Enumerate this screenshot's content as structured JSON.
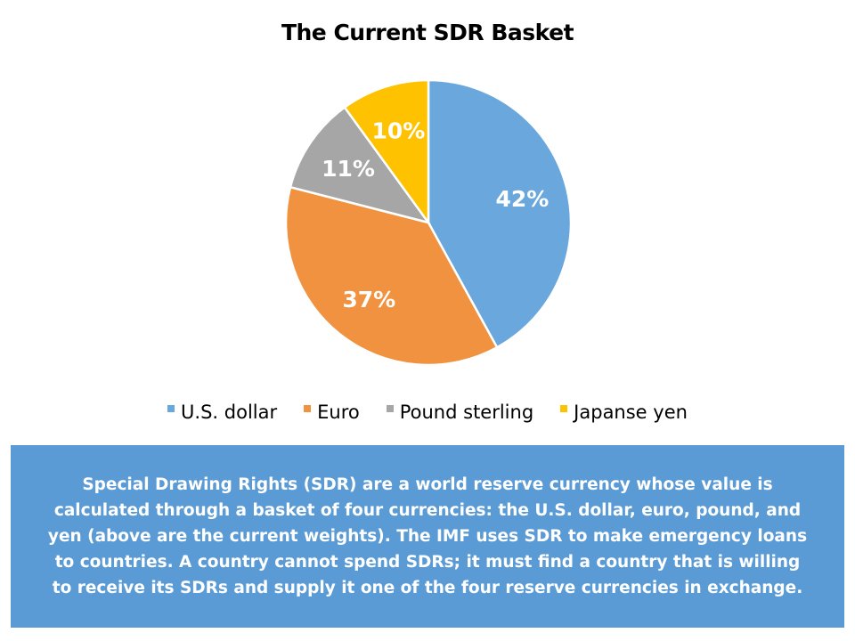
{
  "chart_data": {
    "type": "pie",
    "title": "The Current SDR Basket",
    "categories": [
      "U.S. dollar",
      "Euro",
      "Pound sterling",
      "Japanse yen"
    ],
    "values": [
      42,
      37,
      11,
      10
    ],
    "labels": [
      "42%",
      "37%",
      "11%",
      "10%"
    ],
    "colors": [
      "#6aa7dc",
      "#f0923f",
      "#a6a6a6",
      "#fec200"
    ],
    "legend_position": "bottom"
  },
  "description": "Special Drawing Rights (SDR) are a world reserve currency whose value is calculated through a basket of four currencies: the U.S. dollar, euro, pound, and yen (above are the current weights). The IMF uses SDR to make emergency loans to countries. A country cannot spend SDRs; it must find a country that is willing to receive its SDRs and supply it one of the four reserve currencies in exchange."
}
